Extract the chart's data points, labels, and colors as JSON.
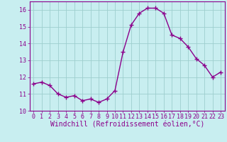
{
  "x": [
    0,
    1,
    2,
    3,
    4,
    5,
    6,
    7,
    8,
    9,
    10,
    11,
    12,
    13,
    14,
    15,
    16,
    17,
    18,
    19,
    20,
    21,
    22,
    23
  ],
  "y": [
    11.6,
    11.7,
    11.5,
    11.0,
    10.8,
    10.9,
    10.6,
    10.7,
    10.5,
    10.7,
    11.2,
    13.5,
    15.1,
    15.8,
    16.1,
    16.1,
    15.8,
    14.5,
    14.3,
    13.8,
    13.1,
    12.7,
    12.0,
    12.3
  ],
  "line_color": "#8B008B",
  "marker": "+",
  "marker_size": 4.0,
  "background_color": "#c8eef0",
  "grid_color": "#9ecece",
  "xlabel": "Windchill (Refroidissement éolien,°C)",
  "xlabel_fontsize": 7,
  "ylim": [
    10,
    16.5
  ],
  "yticks": [
    10,
    11,
    12,
    13,
    14,
    15,
    16
  ],
  "xticks": [
    0,
    1,
    2,
    3,
    4,
    5,
    6,
    7,
    8,
    9,
    10,
    11,
    12,
    13,
    14,
    15,
    16,
    17,
    18,
    19,
    20,
    21,
    22,
    23
  ],
  "tick_fontsize": 6,
  "tick_color": "#8B008B",
  "spine_color": "#8B008B",
  "line_width": 1.0,
  "marker_color": "#8B008B"
}
